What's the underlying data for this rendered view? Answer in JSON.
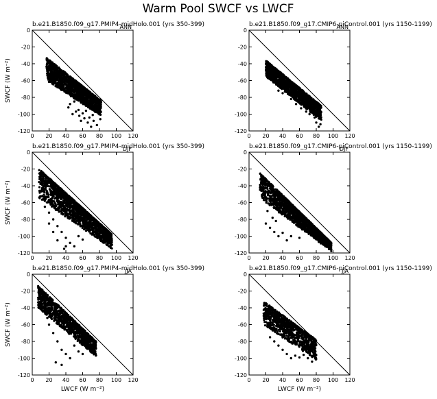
{
  "title": "Warm Pool SWCF vs LWCF",
  "chart_data": [
    {
      "type": "scatter",
      "col": 0,
      "row": 0,
      "title": "b.e21.B1850.f09_g17.PMIP4-midHolo.001 (yrs 350-399)",
      "tag": "ANN",
      "xlabel": "",
      "ylabel": "SWCF (W m⁻²)",
      "xlim": [
        0,
        120
      ],
      "ylim": [
        -120,
        0
      ],
      "xticks": [
        "0",
        "20",
        "40",
        "60",
        "80",
        "100",
        "120"
      ],
      "yticks": [
        "-120",
        "-100",
        "-80",
        "-60",
        "-40",
        "-20",
        "0"
      ],
      "reference_line": "y = -x",
      "cloud": {
        "shape": "band",
        "xmin": 17,
        "xmax": 82,
        "top_start": -33,
        "top_end": -84,
        "bottom_start": -60,
        "bottom_end": -102,
        "count": 1400,
        "scatter": [
          [
            43,
            -92
          ],
          [
            48,
            -100
          ],
          [
            52,
            -97
          ],
          [
            56,
            -102
          ],
          [
            58,
            -108
          ],
          [
            62,
            -105
          ],
          [
            66,
            -110
          ],
          [
            70,
            -115
          ],
          [
            55,
            -95
          ],
          [
            60,
            -99
          ],
          [
            68,
            -104
          ],
          [
            73,
            -108
          ],
          [
            77,
            -113
          ],
          [
            81,
            -106
          ],
          [
            45,
            -88
          ],
          [
            50,
            -85
          ],
          [
            64,
            -96
          ],
          [
            72,
            -101
          ]
        ]
      }
    },
    {
      "type": "scatter",
      "col": 1,
      "row": 0,
      "title": "b.e21.B1850.f09_g17.CMIP6-piControl.001 (yrs 1150-1199)",
      "tag": "ANN",
      "xlabel": "",
      "ylabel": "",
      "xlim": [
        0,
        120
      ],
      "ylim": [
        -120,
        0
      ],
      "xticks": [
        "0",
        "20",
        "40",
        "60",
        "80",
        "100",
        "120"
      ],
      "yticks": [
        "-120",
        "-100",
        "-80",
        "-60",
        "-40",
        "-20",
        "0"
      ],
      "reference_line": "y = -x",
      "cloud": {
        "shape": "band",
        "xmin": 20,
        "xmax": 86,
        "top_start": -36,
        "top_end": -90,
        "bottom_start": -55,
        "bottom_end": -108,
        "count": 1400,
        "scatter": [
          [
            35,
            -72
          ],
          [
            40,
            -75
          ],
          [
            50,
            -82
          ],
          [
            56,
            -88
          ],
          [
            62,
            -93
          ],
          [
            68,
            -97
          ],
          [
            72,
            -100
          ],
          [
            78,
            -104
          ],
          [
            80,
            -110
          ],
          [
            83,
            -115
          ],
          [
            75,
            -96
          ],
          [
            66,
            -90
          ],
          [
            85,
            -112
          ],
          [
            58,
            -85
          ]
        ]
      }
    },
    {
      "type": "scatter",
      "col": 0,
      "row": 1,
      "title": "b.e21.B1850.f09_g17.PMIP4-midHolo.001 (yrs 350-399)",
      "tag": "DJF",
      "xlabel": "",
      "ylabel": "SWCF (W m⁻²)",
      "xlim": [
        0,
        120
      ],
      "ylim": [
        -120,
        0
      ],
      "xticks": [
        "0",
        "20",
        "40",
        "60",
        "80",
        "100",
        "120"
      ],
      "yticks": [
        "-120",
        "-100",
        "-80",
        "-60",
        "-40",
        "-20",
        "0"
      ],
      "reference_line": "y = -x",
      "cloud": {
        "shape": "fan",
        "xmin": 8,
        "xmax": 95,
        "top_start": -20,
        "top_end": -98,
        "bottom_start": -55,
        "bottom_end": -115,
        "count": 1600,
        "scatter": [
          [
            15,
            -65
          ],
          [
            20,
            -72
          ],
          [
            25,
            -80
          ],
          [
            30,
            -88
          ],
          [
            35,
            -95
          ],
          [
            40,
            -102
          ],
          [
            45,
            -108
          ],
          [
            50,
            -112
          ],
          [
            30,
            -105
          ],
          [
            40,
            -112
          ],
          [
            20,
            -85
          ],
          [
            25,
            -95
          ],
          [
            55,
            -100
          ],
          [
            60,
            -104
          ],
          [
            38,
            -115
          ]
        ]
      }
    },
    {
      "type": "scatter",
      "col": 1,
      "row": 1,
      "title": "b.e21.B1850.f09_g17.CMIP6-piControl.001 (yrs 1150-1199)",
      "tag": "DJF",
      "xlabel": "",
      "ylabel": "",
      "xlim": [
        0,
        120
      ],
      "ylim": [
        -120,
        0
      ],
      "xticks": [
        "0",
        "20",
        "40",
        "60",
        "80",
        "100",
        "120"
      ],
      "yticks": [
        "-120",
        "-100",
        "-80",
        "-60",
        "-40",
        "-20",
        "0"
      ],
      "reference_line": "y = -x",
      "cloud": {
        "shape": "fan",
        "xmin": 13,
        "xmax": 98,
        "top_start": -25,
        "top_end": -108,
        "bottom_start": -55,
        "bottom_end": -118,
        "count": 1600,
        "scatter": [
          [
            20,
            -85
          ],
          [
            25,
            -90
          ],
          [
            30,
            -95
          ],
          [
            35,
            -100
          ],
          [
            40,
            -96
          ],
          [
            45,
            -105
          ],
          [
            22,
            -70
          ],
          [
            28,
            -78
          ],
          [
            32,
            -82
          ],
          [
            50,
            -100
          ],
          [
            60,
            -102
          ]
        ]
      }
    },
    {
      "type": "scatter",
      "col": 0,
      "row": 2,
      "title": "b.e21.B1850.f09_g17.PMIP4-midHolo.001 (yrs 350-399)",
      "tag": "JJA",
      "xlabel": "LWCF (W m⁻²)",
      "ylabel": "SWCF (W m⁻²)",
      "xlim": [
        0,
        120
      ],
      "ylim": [
        -120,
        0
      ],
      "xticks": [
        "0",
        "20",
        "40",
        "60",
        "80",
        "100",
        "120"
      ],
      "yticks": [
        "-120",
        "-100",
        "-80",
        "-60",
        "-40",
        "-20",
        "0"
      ],
      "reference_line": "y = -x",
      "cloud": {
        "shape": "band",
        "xmin": 7,
        "xmax": 76,
        "top_start": -14,
        "top_end": -80,
        "bottom_start": -40,
        "bottom_end": -98,
        "count": 1100,
        "scatter": [
          [
            20,
            -60
          ],
          [
            25,
            -70
          ],
          [
            30,
            -80
          ],
          [
            35,
            -90
          ],
          [
            40,
            -95
          ],
          [
            45,
            -100
          ],
          [
            28,
            -105
          ],
          [
            35,
            -108
          ],
          [
            15,
            -45
          ],
          [
            18,
            -52
          ],
          [
            50,
            -85
          ],
          [
            55,
            -92
          ],
          [
            60,
            -95
          ]
        ]
      }
    },
    {
      "type": "scatter",
      "col": 1,
      "row": 2,
      "title": "b.e21.B1850.f09_g17.CMIP6-piControl.001 (yrs 1150-1199)",
      "tag": "JJA",
      "xlabel": "LWCF (W m⁻²)",
      "ylabel": "",
      "xlim": [
        0,
        120
      ],
      "ylim": [
        -120,
        0
      ],
      "xticks": [
        "0",
        "20",
        "40",
        "60",
        "80",
        "100",
        "120"
      ],
      "yticks": [
        "-120",
        "-100",
        "-80",
        "-60",
        "-40",
        "-20",
        "0"
      ],
      "reference_line": "y = -x",
      "cloud": {
        "shape": "band",
        "xmin": 17,
        "xmax": 80,
        "top_start": -32,
        "top_end": -78,
        "bottom_start": -60,
        "bottom_end": -102,
        "count": 900,
        "scatter": [
          [
            25,
            -75
          ],
          [
            30,
            -80
          ],
          [
            35,
            -85
          ],
          [
            40,
            -90
          ],
          [
            45,
            -95
          ],
          [
            50,
            -100
          ],
          [
            55,
            -97
          ],
          [
            60,
            -99
          ],
          [
            65,
            -96
          ],
          [
            70,
            -100
          ],
          [
            75,
            -104
          ],
          [
            40,
            -72
          ],
          [
            48,
            -80
          ]
        ]
      }
    }
  ]
}
